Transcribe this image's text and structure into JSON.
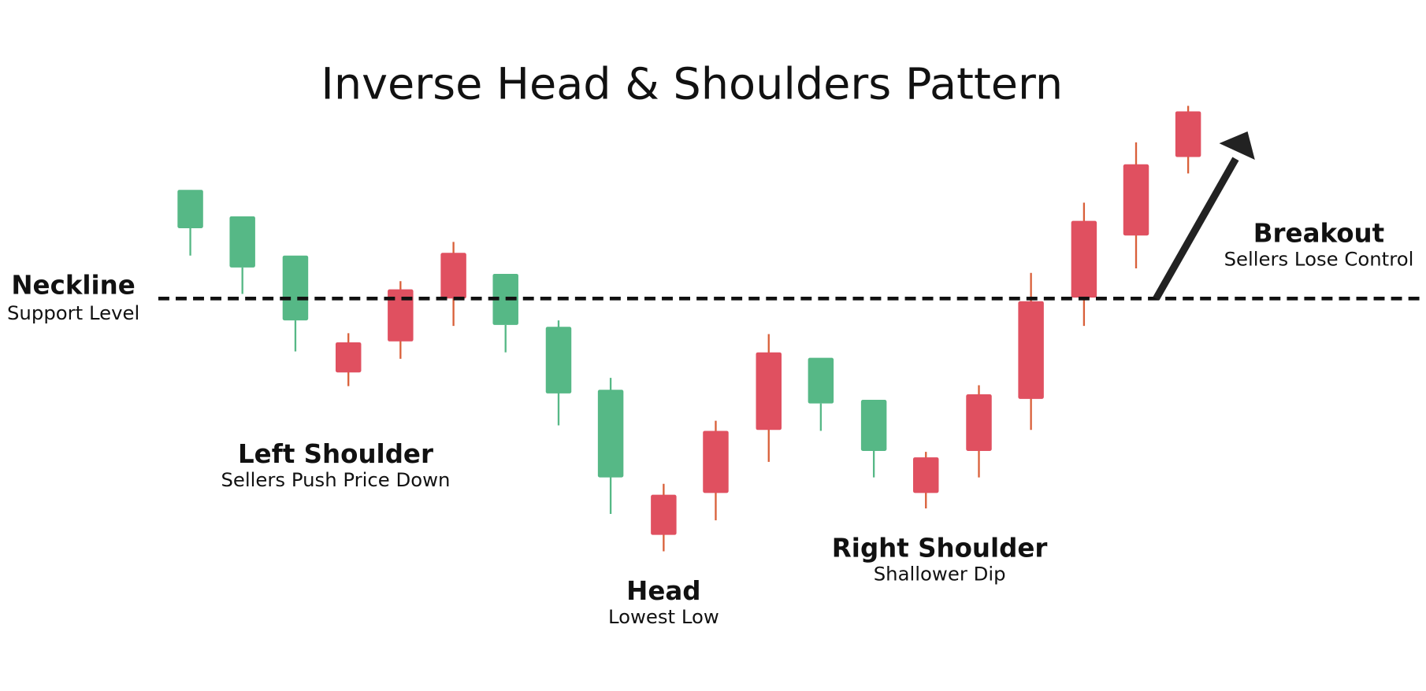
{
  "title": "Inverse Head & Shoulders Pattern",
  "labels": [
    {
      "name": "Neckline",
      "note": "Support Level"
    },
    {
      "name": "Left Shoulder",
      "note": "Sellers Push Price Down"
    },
    {
      "name": "Head",
      "note": "Lowest Low"
    },
    {
      "name": "Right Shoulder",
      "note": "Shallower Dip"
    },
    {
      "name": "Breakout",
      "note": "Sellers Lose Control"
    }
  ]
}
